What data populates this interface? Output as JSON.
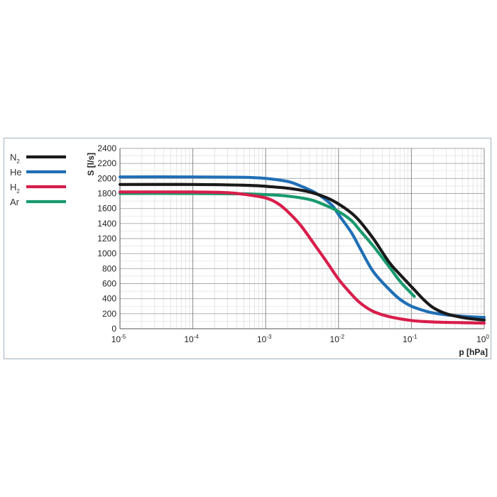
{
  "chart_data": {
    "type": "line",
    "xscale": "log",
    "xlim": [
      1e-05,
      1
    ],
    "ylim": [
      0,
      2400
    ],
    "grid": true,
    "legend_placement": "left",
    "xlabel": "p [hPa]",
    "ylabel": "S [l/s]",
    "x_ticks": [
      {
        "base": "10",
        "exp": "-5"
      },
      {
        "base": "10",
        "exp": "-4"
      },
      {
        "base": "10",
        "exp": "-3"
      },
      {
        "base": "10",
        "exp": "-2"
      },
      {
        "base": "10",
        "exp": "-1"
      },
      {
        "base": "10",
        "exp": "0"
      }
    ],
    "y_ticks": [
      0,
      200,
      400,
      600,
      800,
      1000,
      1200,
      1400,
      1600,
      1800,
      2000,
      2200,
      2400
    ],
    "series": [
      {
        "name": "N",
        "subscript": "2",
        "color": "#1a1a1a",
        "x": [
          1e-05,
          0.0001,
          0.0005,
          0.001,
          0.002,
          0.004,
          0.007,
          0.01,
          0.015,
          0.02,
          0.03,
          0.05,
          0.07,
          0.1,
          0.15,
          0.2,
          0.3,
          0.5,
          0.7,
          1
        ],
        "y": [
          1920,
          1920,
          1910,
          1895,
          1870,
          1820,
          1740,
          1660,
          1540,
          1420,
          1200,
          880,
          720,
          560,
          380,
          280,
          200,
          150,
          130,
          115
        ]
      },
      {
        "name": "He",
        "subscript": "",
        "color": "#1f6fb5",
        "x": [
          1e-05,
          0.0001,
          0.0005,
          0.001,
          0.002,
          0.003,
          0.005,
          0.008,
          0.01,
          0.015,
          0.02,
          0.03,
          0.05,
          0.07,
          0.1,
          0.15,
          0.2,
          0.3,
          0.5,
          1
        ],
        "y": [
          2020,
          2020,
          2015,
          2000,
          1960,
          1900,
          1800,
          1650,
          1520,
          1280,
          1060,
          760,
          520,
          390,
          300,
          240,
          210,
          185,
          165,
          150
        ]
      },
      {
        "name": "H",
        "subscript": "2",
        "color": "#d81e4b",
        "x": [
          1e-05,
          0.0001,
          0.0003,
          0.0005,
          0.001,
          0.0015,
          0.002,
          0.003,
          0.005,
          0.007,
          0.01,
          0.015,
          0.02,
          0.03,
          0.05,
          0.1,
          0.2,
          0.5,
          1
        ],
        "y": [
          1820,
          1820,
          1810,
          1790,
          1740,
          1660,
          1560,
          1380,
          1080,
          880,
          660,
          460,
          340,
          230,
          160,
          110,
          90,
          80,
          75
        ]
      },
      {
        "name": "Ar",
        "subscript": "",
        "color": "#189a6e",
        "x": [
          1e-05,
          0.0001,
          0.0005,
          0.001,
          0.002,
          0.004,
          0.006,
          0.01,
          0.015,
          0.02,
          0.03,
          0.05,
          0.07,
          0.1,
          0.11
        ],
        "y": [
          1800,
          1800,
          1795,
          1785,
          1765,
          1720,
          1660,
          1560,
          1440,
          1300,
          1100,
          820,
          630,
          470,
          430
        ]
      }
    ]
  }
}
